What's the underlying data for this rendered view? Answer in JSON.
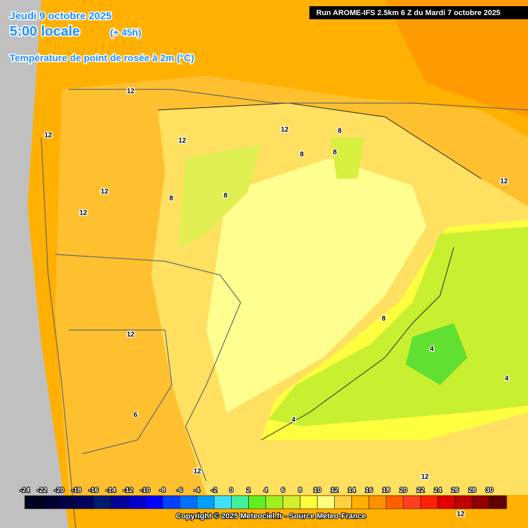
{
  "header": {
    "date": "Jeudi 9 octobre 2025",
    "time": "5:00 locale",
    "offset": "(+ 45h)",
    "title": "Température de point de rosée à 2m (°C)",
    "run": "Run AROME-IFS 2.5km 6 Z du Mardi 7 octobre 2025"
  },
  "contour_labels": [
    "12",
    "12",
    "12",
    "12",
    "12",
    "8",
    "8",
    "12",
    "8",
    "8",
    "12",
    "12",
    "8",
    "4",
    "4",
    "4",
    "12",
    "12",
    "12",
    "6",
    "8"
  ],
  "legend": {
    "ticks": [
      -24,
      -22,
      -20,
      -18,
      -16,
      -14,
      -12,
      -10,
      -8,
      -6,
      -4,
      -2,
      0,
      2,
      4,
      6,
      8,
      10,
      12,
      14,
      16,
      18,
      20,
      22,
      24,
      26,
      28,
      30
    ],
    "colors": [
      "#000020",
      "#000030",
      "#000048",
      "#000060",
      "#001a70",
      "#00009a",
      "#0000c8",
      "#0000ff",
      "#0040ff",
      "#0070ff",
      "#00a0ff",
      "#40e0ff",
      "#40f0a0",
      "#60f020",
      "#a0f020",
      "#d0f030",
      "#ffff40",
      "#ffff80",
      "#ffd040",
      "#ffb000",
      "#ff9000",
      "#ff6000",
      "#ff4020",
      "#ff2000",
      "#e00000",
      "#c00000",
      "#900000",
      "#600000"
    ]
  },
  "footer": {
    "copyright": "Copyright © 2025 Meteociel.fr - Source Meteo-France"
  }
}
